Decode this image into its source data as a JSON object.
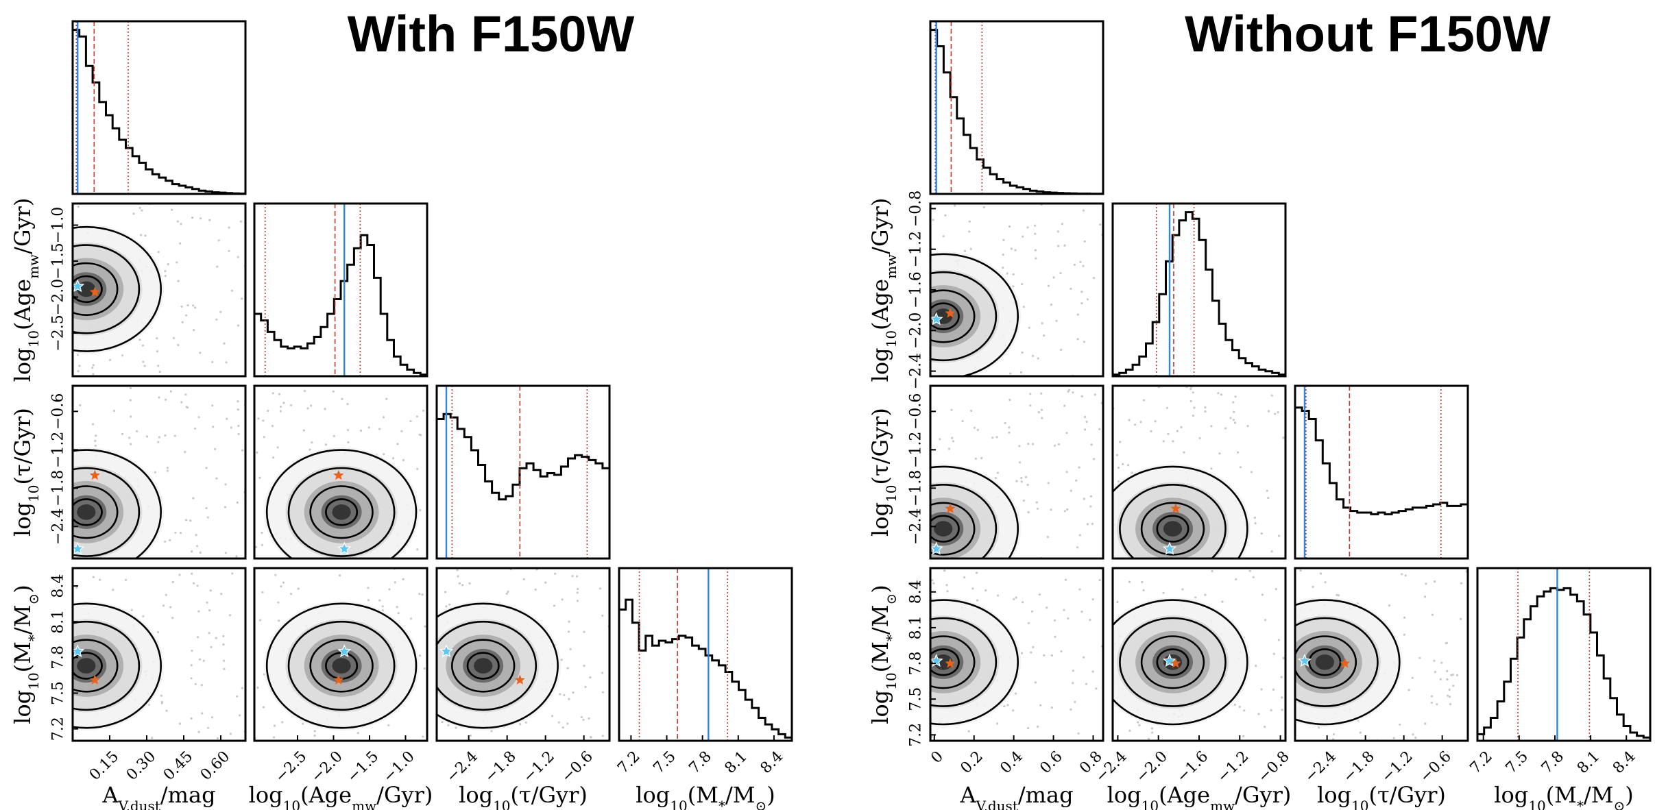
{
  "chart_data": [
    {
      "type": "corner",
      "title": "With F150W",
      "params": [
        {
          "label": "Av",
          "lim": [
            0,
            0.7
          ],
          "ticks": [
            0.15,
            0.3,
            0.45,
            0.6
          ],
          "tick_labels": [
            "0.15",
            "0.30",
            "0.45",
            "0.60"
          ]
        },
        {
          "label": "Age",
          "lim": [
            -3.1,
            -0.7
          ],
          "ticks": [
            -2.5,
            -2.0,
            -1.5,
            -1.0
          ],
          "tick_labels": [
            "−2.5",
            "−2.0",
            "−1.5",
            "−1.0"
          ],
          "y_ticks": [
            -2.5,
            -2.0,
            -1.5,
            -1.0
          ],
          "y_tick_labels": [
            "−2.5",
            "−2.0",
            "−1.5",
            "−1.0"
          ]
        },
        {
          "label": "Tau",
          "lim": [
            -2.9,
            -0.2
          ],
          "ticks": [
            -2.4,
            -1.8,
            -1.2,
            -0.6
          ],
          "tick_labels": [
            "−2.4",
            "−1.8",
            "−1.2",
            "−0.6"
          ]
        },
        {
          "label": "Mass",
          "lim": [
            7.1,
            8.55
          ],
          "ticks": [
            7.2,
            7.5,
            7.8,
            8.1,
            8.4
          ],
          "tick_labels": [
            "7.2",
            "7.5",
            "7.8",
            "8.1",
            "8.4"
          ]
        }
      ],
      "truths_blue": [
        0.02,
        -1.85,
        -2.75,
        7.85
      ],
      "best_orange": [
        0.09,
        -1.93,
        -1.6,
        7.61
      ],
      "quantiles": [
        [
          0.015,
          0.087,
          0.225
        ],
        [
          -2.95,
          -1.98,
          -1.63
        ],
        [
          -2.66,
          -1.6,
          -0.55
        ],
        [
          7.27,
          7.59,
          8.01
        ]
      ],
      "histograms": [
        [
          1.0,
          0.96,
          0.78,
          0.68,
          0.56,
          0.48,
          0.4,
          0.33,
          0.28,
          0.23,
          0.19,
          0.15,
          0.12,
          0.1,
          0.08,
          0.06,
          0.05,
          0.04,
          0.03,
          0.02,
          0.015,
          0.01,
          0.008,
          0.005,
          0.003,
          0.002
        ],
        [
          0.38,
          0.34,
          0.27,
          0.22,
          0.18,
          0.17,
          0.18,
          0.17,
          0.2,
          0.24,
          0.3,
          0.38,
          0.47,
          0.58,
          0.68,
          0.78,
          0.86,
          0.8,
          0.6,
          0.38,
          0.22,
          0.12,
          0.07,
          0.04,
          0.02,
          0.01
        ],
        [
          0.85,
          0.88,
          0.86,
          0.79,
          0.74,
          0.66,
          0.57,
          0.47,
          0.4,
          0.36,
          0.38,
          0.45,
          0.55,
          0.58,
          0.54,
          0.5,
          0.52,
          0.51,
          0.56,
          0.61,
          0.63,
          0.62,
          0.6,
          0.58,
          0.55
        ],
        [
          0.8,
          0.86,
          0.72,
          0.55,
          0.64,
          0.58,
          0.61,
          0.6,
          0.62,
          0.64,
          0.63,
          0.58,
          0.56,
          0.52,
          0.49,
          0.46,
          0.42,
          0.36,
          0.31,
          0.25,
          0.2,
          0.14,
          0.1,
          0.07,
          0.04,
          0.02
        ]
      ],
      "axis_labels": [
        {
          "x": "A",
          "x_sub": "V,dust",
          "x_tail": "/mag"
        },
        {
          "x_pre": "log",
          "x_pre_sub": "10",
          "x_mid": "(Age",
          "x_mid_sub": "mw",
          "x_tail": "/Gyr)"
        },
        {
          "x_pre": "log",
          "x_pre_sub": "10",
          "x_tail": "(τ/Gyr)"
        },
        {
          "x_pre": "log",
          "x_pre_sub": "10",
          "x_mid": "(M",
          "x_mid_sub": "*",
          "x_tail": "/M",
          "x_tail2_sub": "⊙",
          "x_end": ")"
        }
      ]
    },
    {
      "type": "corner",
      "title": "Without F150W",
      "params": [
        {
          "label": "Av",
          "lim": [
            -0.02,
            0.85
          ],
          "ticks": [
            0.0,
            0.2,
            0.4,
            0.6,
            0.8
          ],
          "tick_labels": [
            "0",
            "0.2",
            "0.4",
            "0.6",
            "0.8"
          ]
        },
        {
          "label": "Age",
          "lim": [
            -2.45,
            -0.75
          ],
          "ticks": [
            -2.4,
            -2.0,
            -1.6,
            -1.2,
            -0.8
          ],
          "tick_labels": [
            "−2.4",
            "−2.0",
            "−1.6",
            "−1.2",
            "−0.8"
          ],
          "y_ticks": [
            -2.4,
            -2.0,
            -1.6,
            -1.2,
            -0.8
          ],
          "y_tick_labels": [
            "−2.4",
            "−2.0",
            "−1.6",
            "−1.2",
            "−0.8"
          ]
        },
        {
          "label": "Tau",
          "lim": [
            -2.9,
            -0.2
          ],
          "ticks": [
            -2.4,
            -1.8,
            -1.2,
            -0.6
          ],
          "tick_labels": [
            "−2.4",
            "−1.8",
            "−1.2",
            "−0.6"
          ]
        },
        {
          "label": "Mass",
          "lim": [
            7.15,
            8.6
          ],
          "ticks": [
            7.2,
            7.5,
            7.8,
            8.1,
            8.4
          ],
          "tick_labels": [
            "7.2",
            "7.5",
            "7.8",
            "8.1",
            "8.4"
          ]
        }
      ],
      "truths_blue": [
        0.01,
        -1.89,
        -2.75,
        7.82
      ],
      "best_orange": [
        0.08,
        -1.83,
        -2.12,
        7.8
      ],
      "quantiles": [
        [
          0.005,
          0.085,
          0.24
        ],
        [
          -2.02,
          -1.85,
          -1.65
        ],
        [
          -2.73,
          -2.05,
          -0.62
        ],
        [
          7.49,
          7.82,
          8.09
        ]
      ],
      "histograms": [
        [
          1.0,
          0.9,
          0.74,
          0.59,
          0.46,
          0.36,
          0.28,
          0.21,
          0.16,
          0.12,
          0.09,
          0.07,
          0.05,
          0.04,
          0.03,
          0.02,
          0.015,
          0.01,
          0.008,
          0.006,
          0.004,
          0.003,
          0.002,
          0.002,
          0.001,
          0.001
        ],
        [
          0.01,
          0.02,
          0.04,
          0.07,
          0.12,
          0.2,
          0.33,
          0.5,
          0.7,
          0.86,
          0.95,
          1.0,
          0.96,
          0.83,
          0.65,
          0.46,
          0.32,
          0.22,
          0.16,
          0.11,
          0.08,
          0.06,
          0.04,
          0.03,
          0.02,
          0.01
        ],
        [
          0.92,
          0.9,
          0.85,
          0.72,
          0.58,
          0.46,
          0.36,
          0.31,
          0.29,
          0.28,
          0.28,
          0.27,
          0.28,
          0.27,
          0.28,
          0.29,
          0.3,
          0.31,
          0.31,
          0.32,
          0.33,
          0.34,
          0.32,
          0.32,
          0.33
        ],
        [
          0.04,
          0.08,
          0.14,
          0.24,
          0.36,
          0.5,
          0.63,
          0.74,
          0.82,
          0.88,
          0.91,
          0.93,
          0.92,
          0.93,
          0.89,
          0.85,
          0.77,
          0.66,
          0.52,
          0.38,
          0.26,
          0.16,
          0.09,
          0.05,
          0.03,
          0.02
        ]
      ],
      "axis_labels": [
        {
          "x": "A",
          "x_sub": "V,dust",
          "x_tail": "/mag"
        },
        {
          "x_pre": "log",
          "x_pre_sub": "10",
          "x_mid": "(Age",
          "x_mid_sub": "mw",
          "x_tail": "/Gyr)"
        },
        {
          "x_pre": "log",
          "x_pre_sub": "10",
          "x_tail": "(τ/Gyr)"
        },
        {
          "x_pre": "log",
          "x_pre_sub": "10",
          "x_mid": "(M",
          "x_mid_sub": "*",
          "x_tail": "/M",
          "x_tail2_sub": "⊙",
          "x_end": ")"
        }
      ]
    }
  ],
  "colors": {
    "truth_blue": "#2e86de",
    "best_orange": "#e8621a",
    "quantile_red": "#c0392b",
    "star_blue": "#5bc8f2"
  }
}
